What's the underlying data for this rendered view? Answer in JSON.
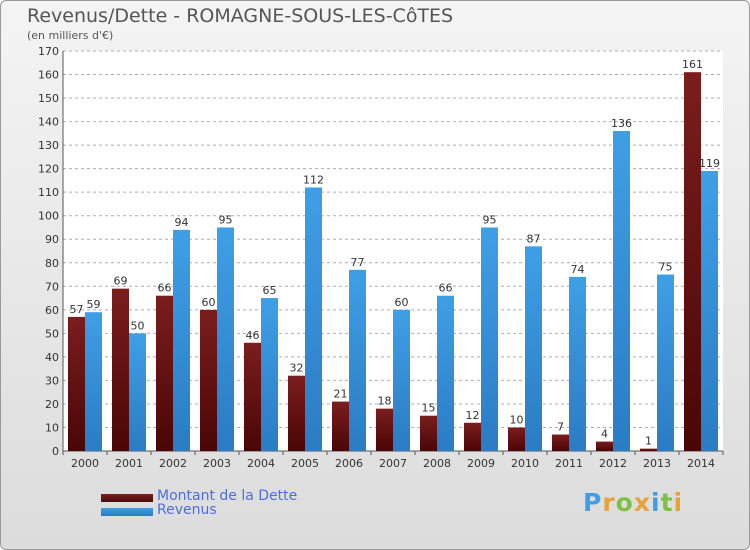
{
  "title": "Revenus/Dette - ROMAGNE-SOUS-LES-CôTES",
  "subtitle": "(en milliers d'€)",
  "colors": {
    "dette": "#7b1d1d",
    "revenus": "#3f9fe6",
    "grid": "#aeaeae",
    "axis_text": "#333333"
  },
  "legend": [
    {
      "label": "Montant de la Dette",
      "color": "#7b1d1d"
    },
    {
      "label": "Revenus",
      "color": "#3f9fe6"
    }
  ],
  "logo_text": "Proxiti",
  "chart_data": {
    "type": "bar",
    "title": "Revenus/Dette - ROMAGNE-SOUS-LES-CôTES",
    "ylabel": "(en milliers d'€)",
    "xlabel": "",
    "categories": [
      "2000",
      "2001",
      "2002",
      "2003",
      "2004",
      "2005",
      "2006",
      "2007",
      "2008",
      "2009",
      "2010",
      "2011",
      "2012",
      "2013",
      "2014"
    ],
    "series": [
      {
        "name": "Montant de la Dette",
        "values": [
          57,
          69,
          66,
          60,
          46,
          32,
          21,
          18,
          15,
          12,
          10,
          7,
          4,
          1,
          161
        ]
      },
      {
        "name": "Revenus",
        "values": [
          59,
          50,
          94,
          95,
          65,
          112,
          77,
          60,
          66,
          95,
          87,
          74,
          136,
          75,
          119
        ]
      }
    ],
    "ylim": [
      0,
      170
    ],
    "yticks": [
      0,
      10,
      20,
      30,
      40,
      50,
      60,
      70,
      80,
      90,
      100,
      110,
      120,
      130,
      140,
      150,
      160,
      170
    ],
    "grid": true,
    "legend_position": "bottom-left"
  }
}
